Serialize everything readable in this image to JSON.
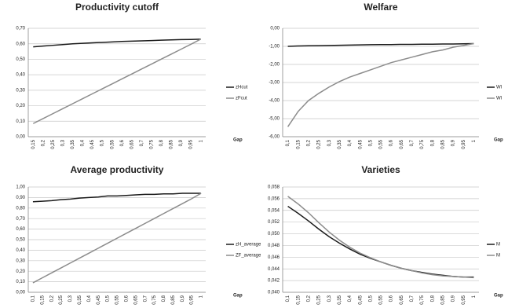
{
  "chart_data": [
    {
      "type": "line",
      "title": "Productivity cutoff",
      "x_label": "Gap",
      "categories": [
        "0,15",
        "0,2",
        "0,25",
        "0,3",
        "0,35",
        "0,4",
        "0,45",
        "0,5",
        "0,55",
        "0,6",
        "0,65",
        "0,7",
        "0,75",
        "0,8",
        "0,85",
        "0,9",
        "0,95",
        "1"
      ],
      "series": [
        {
          "name": "zHcut",
          "color": "#1a1a1a",
          "values": [
            0.58,
            0.585,
            0.59,
            0.595,
            0.6,
            0.603,
            0.606,
            0.609,
            0.612,
            0.615,
            0.617,
            0.619,
            0.621,
            0.623,
            0.625,
            0.627,
            0.628,
            0.63
          ]
        },
        {
          "name": "zFcut",
          "color": "#8c8c8c",
          "values": [
            0.085,
            0.117,
            0.149,
            0.181,
            0.213,
            0.245,
            0.277,
            0.309,
            0.341,
            0.373,
            0.405,
            0.437,
            0.469,
            0.501,
            0.533,
            0.565,
            0.597,
            0.63
          ]
        }
      ],
      "ylim": [
        0,
        0.7
      ],
      "yticks": [
        {
          "value": 0,
          "label": "0,00"
        },
        {
          "value": 0.1,
          "label": "0,10"
        },
        {
          "value": 0.2,
          "label": "0,20"
        },
        {
          "value": 0.3,
          "label": "0,30"
        },
        {
          "value": 0.4,
          "label": "0,40"
        },
        {
          "value": 0.5,
          "label": "0,50"
        },
        {
          "value": 0.6,
          "label": "0,60"
        },
        {
          "value": 0.7,
          "label": "0,70"
        }
      ],
      "grid": true
    },
    {
      "type": "line",
      "title": "Welfare",
      "x_label": "Gap",
      "categories": [
        "0,1",
        "0,15",
        "0,2",
        "0,25",
        "0,3",
        "0,35",
        "0,4",
        "0,45",
        "0,5",
        "0,55",
        "0,6",
        "0,65",
        "0,7",
        "0,75",
        "0,8",
        "0,85",
        "0,9",
        "0,95",
        "1"
      ],
      "series": [
        {
          "name": "Wl",
          "color": "#1a1a1a",
          "values": [
            -1.0,
            -0.98,
            -0.97,
            -0.96,
            -0.95,
            -0.94,
            -0.93,
            -0.92,
            -0.91,
            -0.9,
            -0.9,
            -0.89,
            -0.89,
            -0.88,
            -0.88,
            -0.87,
            -0.87,
            -0.86,
            -0.85
          ]
        },
        {
          "name": "Wl",
          "color": "#8c8c8c",
          "values": [
            -5.45,
            -4.6,
            -4.0,
            -3.6,
            -3.25,
            -2.95,
            -2.7,
            -2.5,
            -2.3,
            -2.1,
            -1.9,
            -1.75,
            -1.6,
            -1.45,
            -1.3,
            -1.2,
            -1.05,
            -0.95,
            -0.85
          ]
        }
      ],
      "ylim": [
        -6,
        0
      ],
      "yticks": [
        {
          "value": -6,
          "label": "-6,00"
        },
        {
          "value": -5,
          "label": "-5,00"
        },
        {
          "value": -4,
          "label": "-4,00"
        },
        {
          "value": -3,
          "label": "-3,00"
        },
        {
          "value": -2,
          "label": "-2,00"
        },
        {
          "value": -1,
          "label": "-1,00"
        },
        {
          "value": 0,
          "label": "0,00"
        }
      ],
      "grid": true
    },
    {
      "type": "line",
      "title": "Average productivity",
      "x_label": "Gap",
      "categories": [
        "0,1",
        "0,15",
        "0,2",
        "0,25",
        "0,3",
        "0,35",
        "0,4",
        "0,45",
        "0,5",
        "0,55",
        "0,6",
        "0,65",
        "0,7",
        "0,75",
        "0,8",
        "0,85",
        "0,9",
        "0,95",
        "1"
      ],
      "series": [
        {
          "name": "zH_average",
          "color": "#1a1a1a",
          "values": [
            0.86,
            0.865,
            0.87,
            0.88,
            0.885,
            0.895,
            0.9,
            0.905,
            0.915,
            0.915,
            0.92,
            0.925,
            0.93,
            0.93,
            0.935,
            0.935,
            0.94,
            0.94,
            0.94
          ]
        },
        {
          "name": "ZF_average",
          "color": "#8c8c8c",
          "values": [
            0.09,
            0.137,
            0.184,
            0.231,
            0.278,
            0.325,
            0.372,
            0.419,
            0.466,
            0.513,
            0.56,
            0.607,
            0.654,
            0.701,
            0.748,
            0.795,
            0.842,
            0.889,
            0.94
          ]
        }
      ],
      "ylim": [
        0,
        1
      ],
      "yticks": [
        {
          "value": 0,
          "label": "0,00"
        },
        {
          "value": 0.1,
          "label": "0,10"
        },
        {
          "value": 0.2,
          "label": "0,20"
        },
        {
          "value": 0.3,
          "label": "0,30"
        },
        {
          "value": 0.4,
          "label": "0,40"
        },
        {
          "value": 0.5,
          "label": "0,50"
        },
        {
          "value": 0.6,
          "label": "0,60"
        },
        {
          "value": 0.7,
          "label": "0,70"
        },
        {
          "value": 0.8,
          "label": "0,80"
        },
        {
          "value": 0.9,
          "label": "0,90"
        },
        {
          "value": 1,
          "label": "1,00"
        }
      ],
      "grid": true
    },
    {
      "type": "line",
      "title": "Varieties",
      "x_label": "Gap",
      "categories": [
        "0,1",
        "0,15",
        "0,2",
        "0,25",
        "0,3",
        "0,35",
        "0,4",
        "0,45",
        "0,5",
        "0,55",
        "0,6",
        "0,65",
        "0,7",
        "0,75",
        "0,8",
        "0,85",
        "0,9",
        "0,95",
        "1"
      ],
      "series": [
        {
          "name": "M",
          "color": "#1a1a1a",
          "values": [
            0.0547,
            0.0535,
            0.0522,
            0.0508,
            0.0495,
            0.0484,
            0.0474,
            0.0465,
            0.0458,
            0.0452,
            0.0446,
            0.0441,
            0.0437,
            0.0434,
            0.0431,
            0.0429,
            0.0427,
            0.0426,
            0.0426
          ]
        },
        {
          "name": "M",
          "color": "#8c8c8c",
          "values": [
            0.0564,
            0.0551,
            0.0536,
            0.0519,
            0.0503,
            0.0489,
            0.0477,
            0.0467,
            0.0459,
            0.0452,
            0.0446,
            0.0441,
            0.0437,
            0.0433,
            0.043,
            0.0428,
            0.0427,
            0.0426,
            0.0425
          ]
        }
      ],
      "ylim": [
        0.04,
        0.058
      ],
      "yticks": [
        {
          "value": 0.04,
          "label": "0,040"
        },
        {
          "value": 0.042,
          "label": "0,042"
        },
        {
          "value": 0.044,
          "label": "0,044"
        },
        {
          "value": 0.046,
          "label": "0,046"
        },
        {
          "value": 0.048,
          "label": "0,048"
        },
        {
          "value": 0.05,
          "label": "0,050"
        },
        {
          "value": 0.052,
          "label": "0,052"
        },
        {
          "value": 0.054,
          "label": "0,054"
        },
        {
          "value": 0.056,
          "label": "0,056"
        },
        {
          "value": 0.058,
          "label": "0,058"
        }
      ],
      "grid": true
    }
  ]
}
